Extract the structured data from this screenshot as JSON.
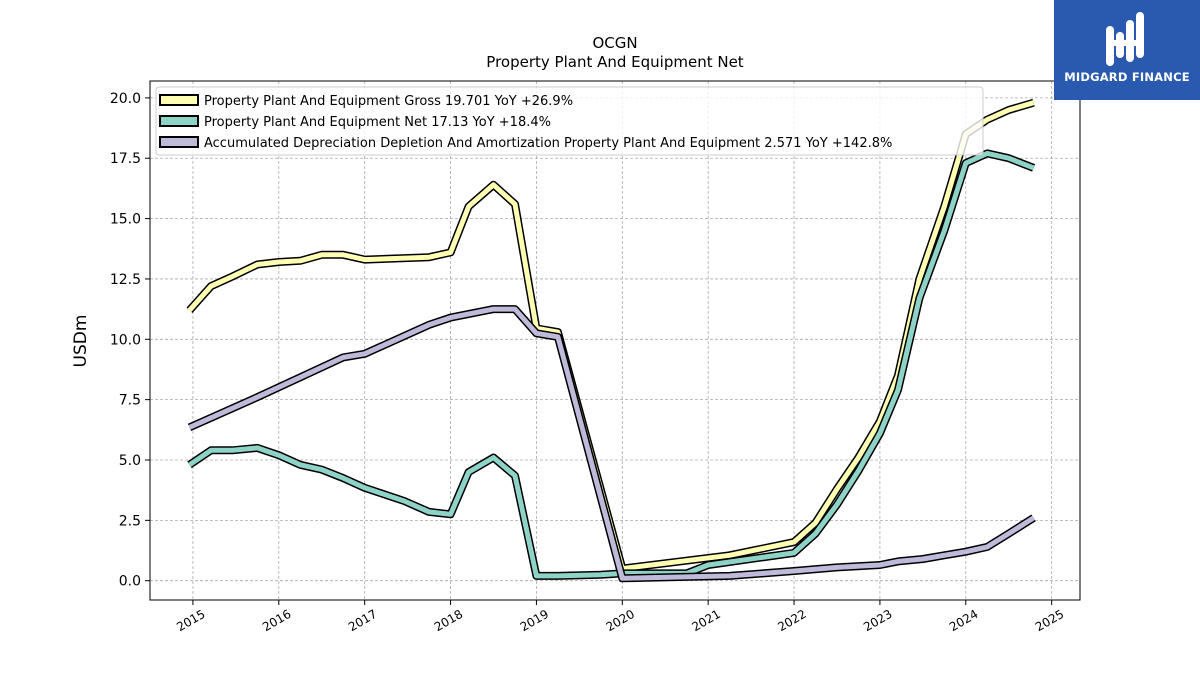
{
  "chart_data": {
    "type": "line",
    "title": "OCGN",
    "subtitle": "Property Plant And Equipment Net",
    "ylabel": "USDm",
    "xlabel": "",
    "ylim": [
      -0.8,
      20.7
    ],
    "xlim": [
      2014.5,
      2025.33
    ],
    "yticks": [
      0.0,
      2.5,
      5.0,
      7.5,
      10.0,
      12.5,
      15.0,
      17.5,
      20.0
    ],
    "ytick_labels": [
      "0.0",
      "2.5",
      "5.0",
      "7.5",
      "10.0",
      "12.5",
      "15.0",
      "17.5",
      "20.0"
    ],
    "xticks": [
      2015,
      2016,
      2017,
      2018,
      2019,
      2020,
      2021,
      2022,
      2023,
      2024,
      2025
    ],
    "xtick_labels": [
      "2015",
      "2016",
      "2017",
      "2018",
      "2019",
      "2020",
      "2021",
      "2022",
      "2023",
      "2024",
      "2025"
    ],
    "grid": true,
    "legend_position": "top-left",
    "series": [
      {
        "name": "Property Plant And Equipment Gross  19.701 YoY +26.9%",
        "color": "#ffffb3",
        "points": [
          [
            2014.96,
            11.2
          ],
          [
            2015.21,
            12.2
          ],
          [
            2015.46,
            12.6
          ],
          [
            2015.75,
            13.1
          ],
          [
            2016.0,
            13.2
          ],
          [
            2016.25,
            13.25
          ],
          [
            2016.5,
            13.5
          ],
          [
            2016.75,
            13.5
          ],
          [
            2017.0,
            13.3
          ],
          [
            2017.75,
            13.4
          ],
          [
            2018.0,
            13.6
          ],
          [
            2018.21,
            15.5
          ],
          [
            2018.5,
            16.4
          ],
          [
            2018.75,
            15.6
          ],
          [
            2019.0,
            10.45
          ],
          [
            2019.25,
            10.3
          ],
          [
            2020.0,
            0.5
          ],
          [
            2021.25,
            1.05
          ],
          [
            2022.0,
            1.6
          ],
          [
            2022.25,
            2.4
          ],
          [
            2022.5,
            3.8
          ],
          [
            2022.75,
            5.1
          ],
          [
            2023.0,
            6.6
          ],
          [
            2023.21,
            8.5
          ],
          [
            2023.46,
            12.5
          ],
          [
            2023.75,
            15.5
          ],
          [
            2024.0,
            18.5
          ],
          [
            2024.25,
            19.1
          ],
          [
            2024.5,
            19.5
          ],
          [
            2024.79,
            19.8
          ]
        ]
      },
      {
        "name": "Property Plant And Equipment Net  17.13 YoY +18.4%",
        "color": "#8dd3c7",
        "points": [
          [
            2014.96,
            4.8
          ],
          [
            2015.21,
            5.4
          ],
          [
            2015.46,
            5.4
          ],
          [
            2015.75,
            5.5
          ],
          [
            2016.0,
            5.2
          ],
          [
            2016.25,
            4.8
          ],
          [
            2016.5,
            4.6
          ],
          [
            2016.75,
            4.25
          ],
          [
            2017.0,
            3.85
          ],
          [
            2017.46,
            3.3
          ],
          [
            2017.75,
            2.85
          ],
          [
            2018.0,
            2.75
          ],
          [
            2018.21,
            4.5
          ],
          [
            2018.5,
            5.1
          ],
          [
            2018.75,
            4.35
          ],
          [
            2019.0,
            0.2
          ],
          [
            2019.25,
            0.2
          ],
          [
            2019.75,
            0.25
          ],
          [
            2020.0,
            0.3
          ],
          [
            2020.75,
            0.3
          ],
          [
            2021.0,
            0.65
          ],
          [
            2022.0,
            1.15
          ],
          [
            2022.25,
            1.95
          ],
          [
            2022.5,
            3.15
          ],
          [
            2022.75,
            4.55
          ],
          [
            2023.0,
            6.1
          ],
          [
            2023.21,
            7.9
          ],
          [
            2023.46,
            11.7
          ],
          [
            2023.75,
            14.5
          ],
          [
            2024.0,
            17.3
          ],
          [
            2024.25,
            17.7
          ],
          [
            2024.5,
            17.5
          ],
          [
            2024.79,
            17.1
          ]
        ]
      },
      {
        "name": "Accumulated Depreciation Depletion And Amortization Property Plant And Equipment  2.571 YoY +142.8%",
        "color": "#bebada",
        "points": [
          [
            2014.96,
            6.35
          ],
          [
            2015.75,
            7.6
          ],
          [
            2016.75,
            9.25
          ],
          [
            2017.0,
            9.4
          ],
          [
            2017.75,
            10.6
          ],
          [
            2018.0,
            10.9
          ],
          [
            2018.5,
            11.25
          ],
          [
            2018.75,
            11.25
          ],
          [
            2019.0,
            10.25
          ],
          [
            2019.25,
            10.1
          ],
          [
            2020.0,
            0.1
          ],
          [
            2021.25,
            0.2
          ],
          [
            2022.0,
            0.4
          ],
          [
            2022.5,
            0.55
          ],
          [
            2023.0,
            0.65
          ],
          [
            2023.21,
            0.8
          ],
          [
            2023.5,
            0.9
          ],
          [
            2023.75,
            1.05
          ],
          [
            2024.0,
            1.2
          ],
          [
            2024.25,
            1.4
          ],
          [
            2024.5,
            1.95
          ],
          [
            2024.79,
            2.6
          ]
        ]
      }
    ]
  },
  "brand": {
    "name": "MIDGARD FINANCE",
    "color": "#2a59b0"
  }
}
